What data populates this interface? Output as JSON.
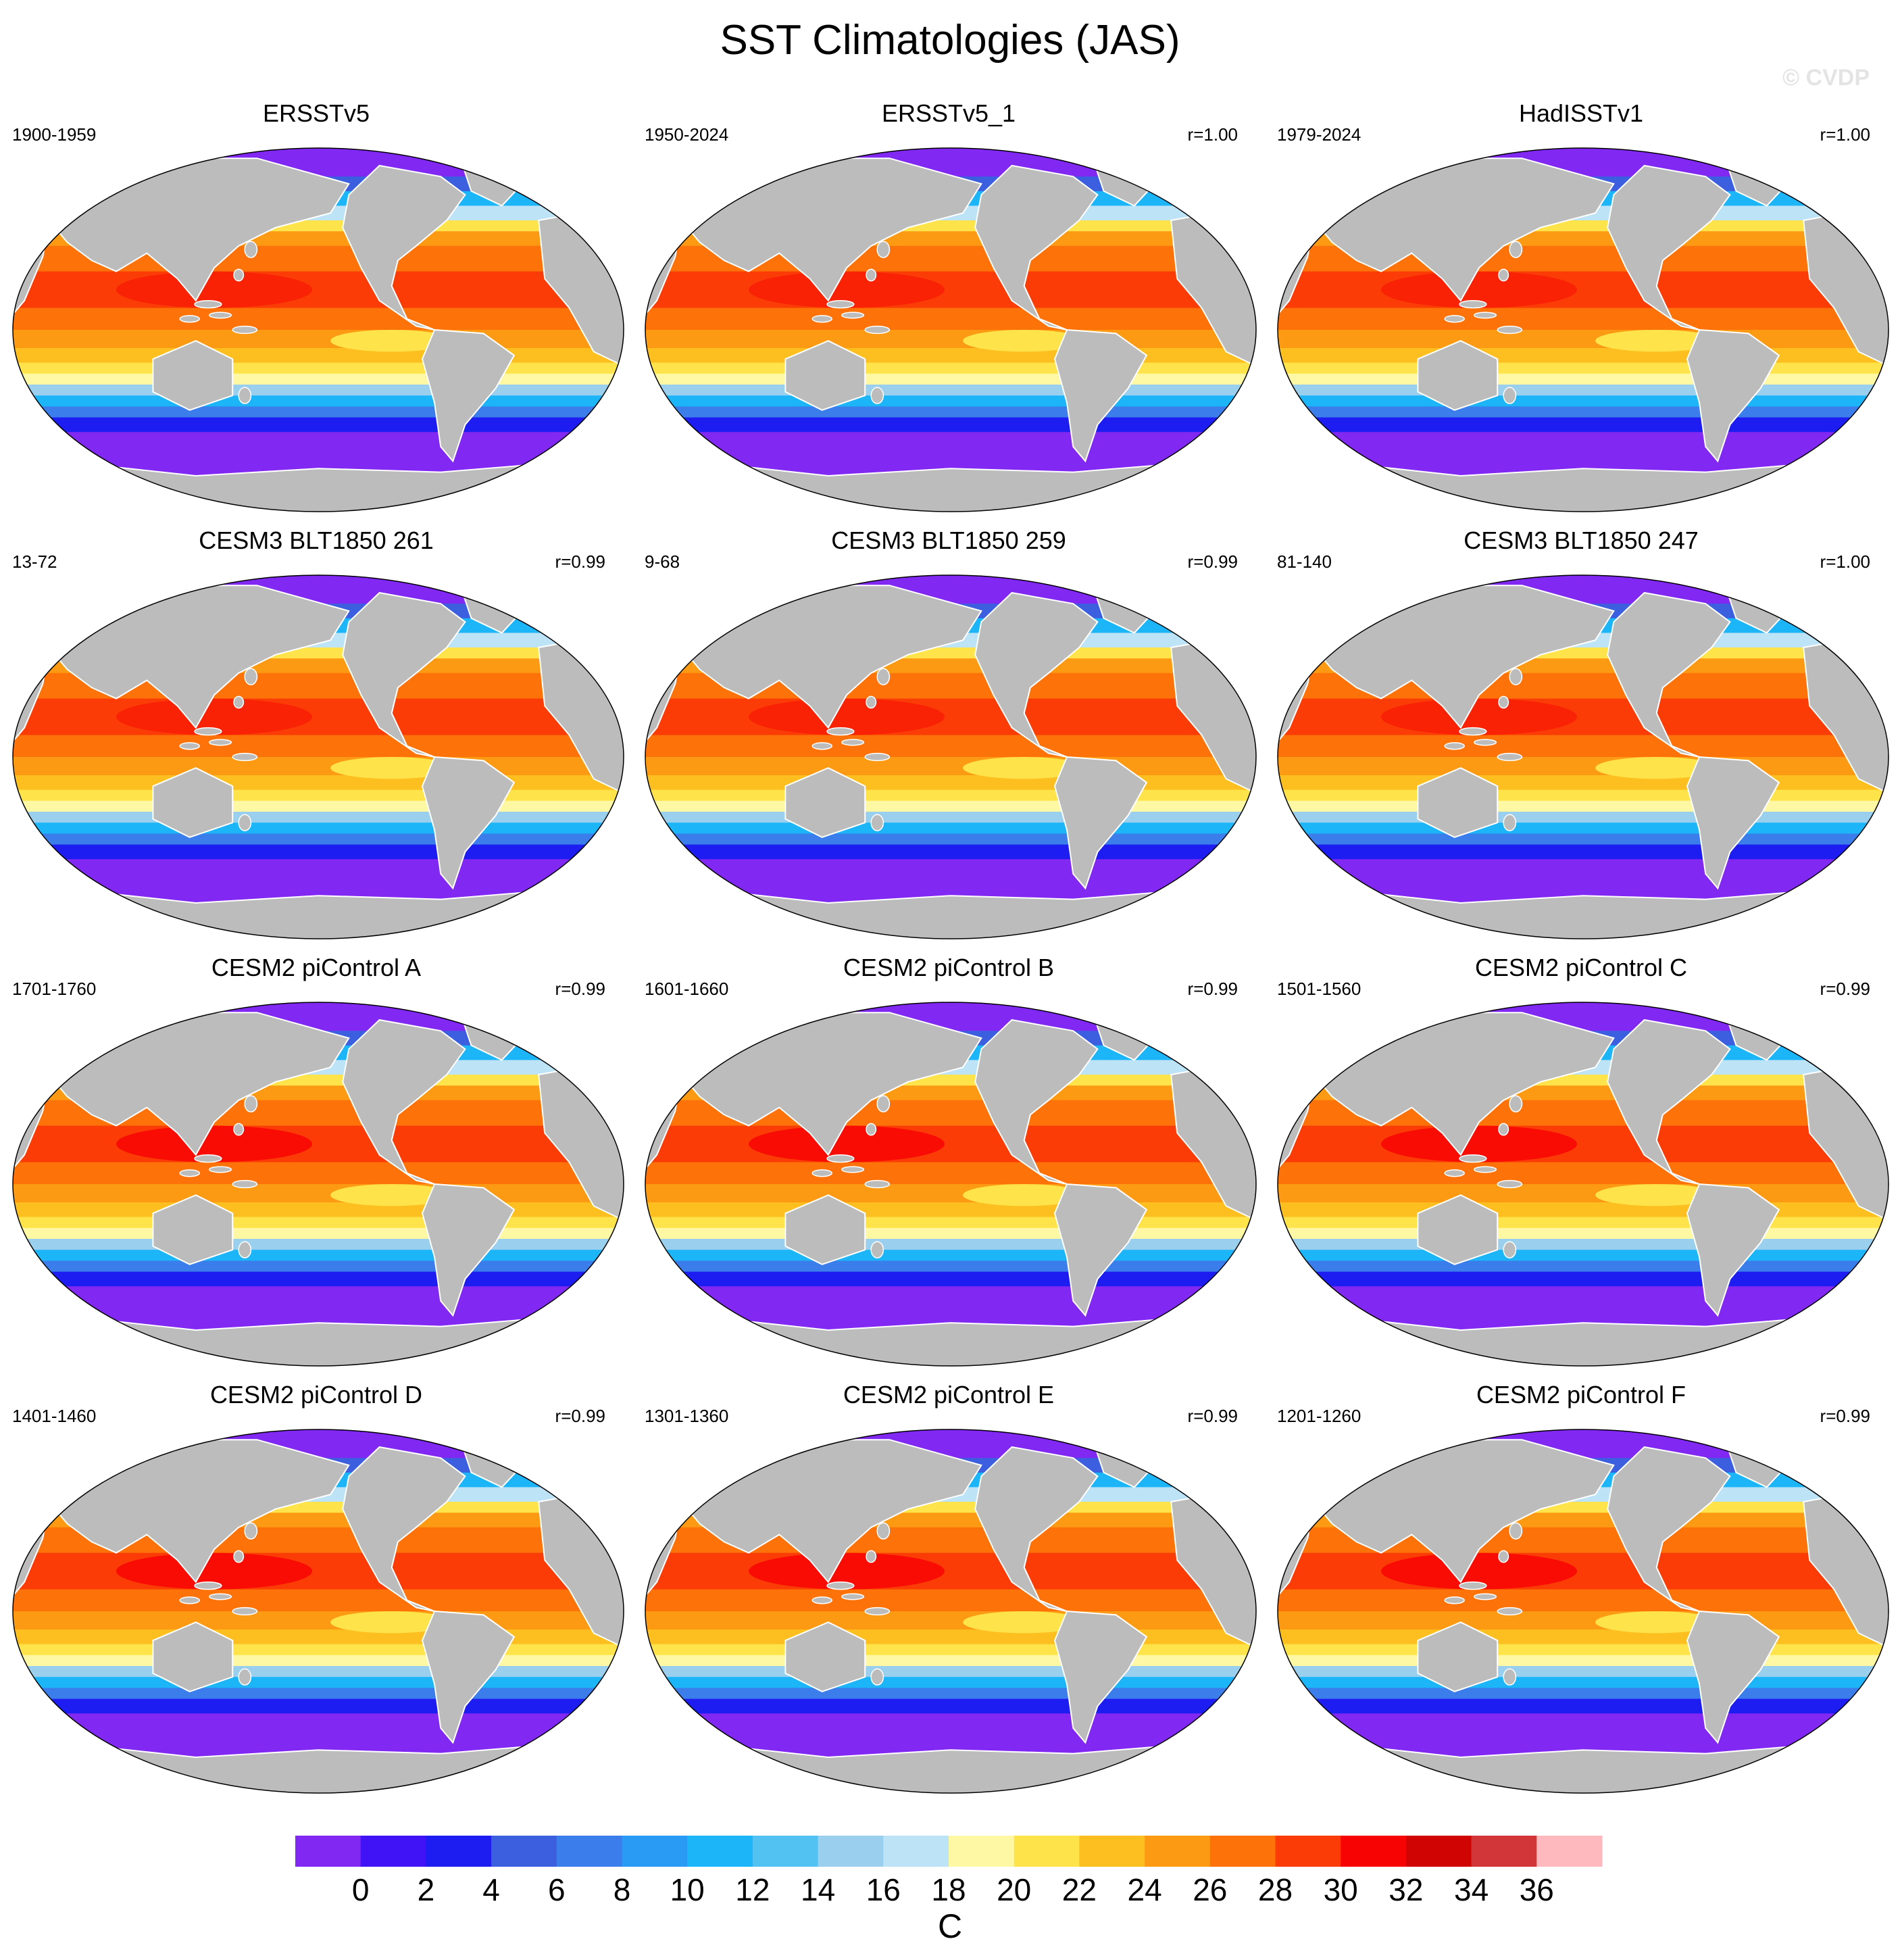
{
  "title": "SST Climatologies (JAS)",
  "watermark": "© CVDP",
  "panels": [
    {
      "title": "ERSSTv5",
      "period": "1900-1959",
      "r": ""
    },
    {
      "title": "ERSSTv5_1",
      "period": "1950-2024",
      "r": "r=1.00"
    },
    {
      "title": "HadISSTv1",
      "period": "1979-2024",
      "r": "r=1.00"
    },
    {
      "title": "CESM3 BLT1850 261",
      "period": "13-72",
      "r": "r=0.99"
    },
    {
      "title": "CESM3 BLT1850 259",
      "period": "9-68",
      "r": "r=0.99"
    },
    {
      "title": "CESM3 BLT1850 247",
      "period": "81-140",
      "r": "r=1.00"
    },
    {
      "title": "CESM2 piControl A",
      "period": "1701-1760",
      "r": "r=0.99"
    },
    {
      "title": "CESM2 piControl B",
      "period": "1601-1660",
      "r": "r=0.99"
    },
    {
      "title": "CESM2 piControl C",
      "period": "1501-1560",
      "r": "r=0.99"
    },
    {
      "title": "CESM2 piControl D",
      "period": "1401-1460",
      "r": "r=0.99"
    },
    {
      "title": "CESM2 piControl E",
      "period": "1301-1360",
      "r": "r=0.99"
    },
    {
      "title": "CESM2 piControl F",
      "period": "1201-1260",
      "r": "r=0.99"
    }
  ],
  "colorbar": {
    "labels": [
      "0",
      "2",
      "4",
      "6",
      "8",
      "10",
      "12",
      "14",
      "16",
      "18",
      "20",
      "22",
      "24",
      "26",
      "28",
      "30",
      "32",
      "34",
      "36"
    ],
    "units": "C",
    "colors": [
      "#8128F2",
      "#3F13F5",
      "#1D1DF2",
      "#3C5FE0",
      "#3A7DEB",
      "#2A9BF5",
      "#1BB5F8",
      "#52C2F3",
      "#9BCFEE",
      "#BDE3F7",
      "#FEF7A3",
      "#FEE44A",
      "#FDBF1F",
      "#FD9A13",
      "#FD730A",
      "#FB3C07",
      "#F70303",
      "#D10404",
      "#D33638",
      "#FDB9BE"
    ],
    "land_color": "#bcbcbc"
  }
}
